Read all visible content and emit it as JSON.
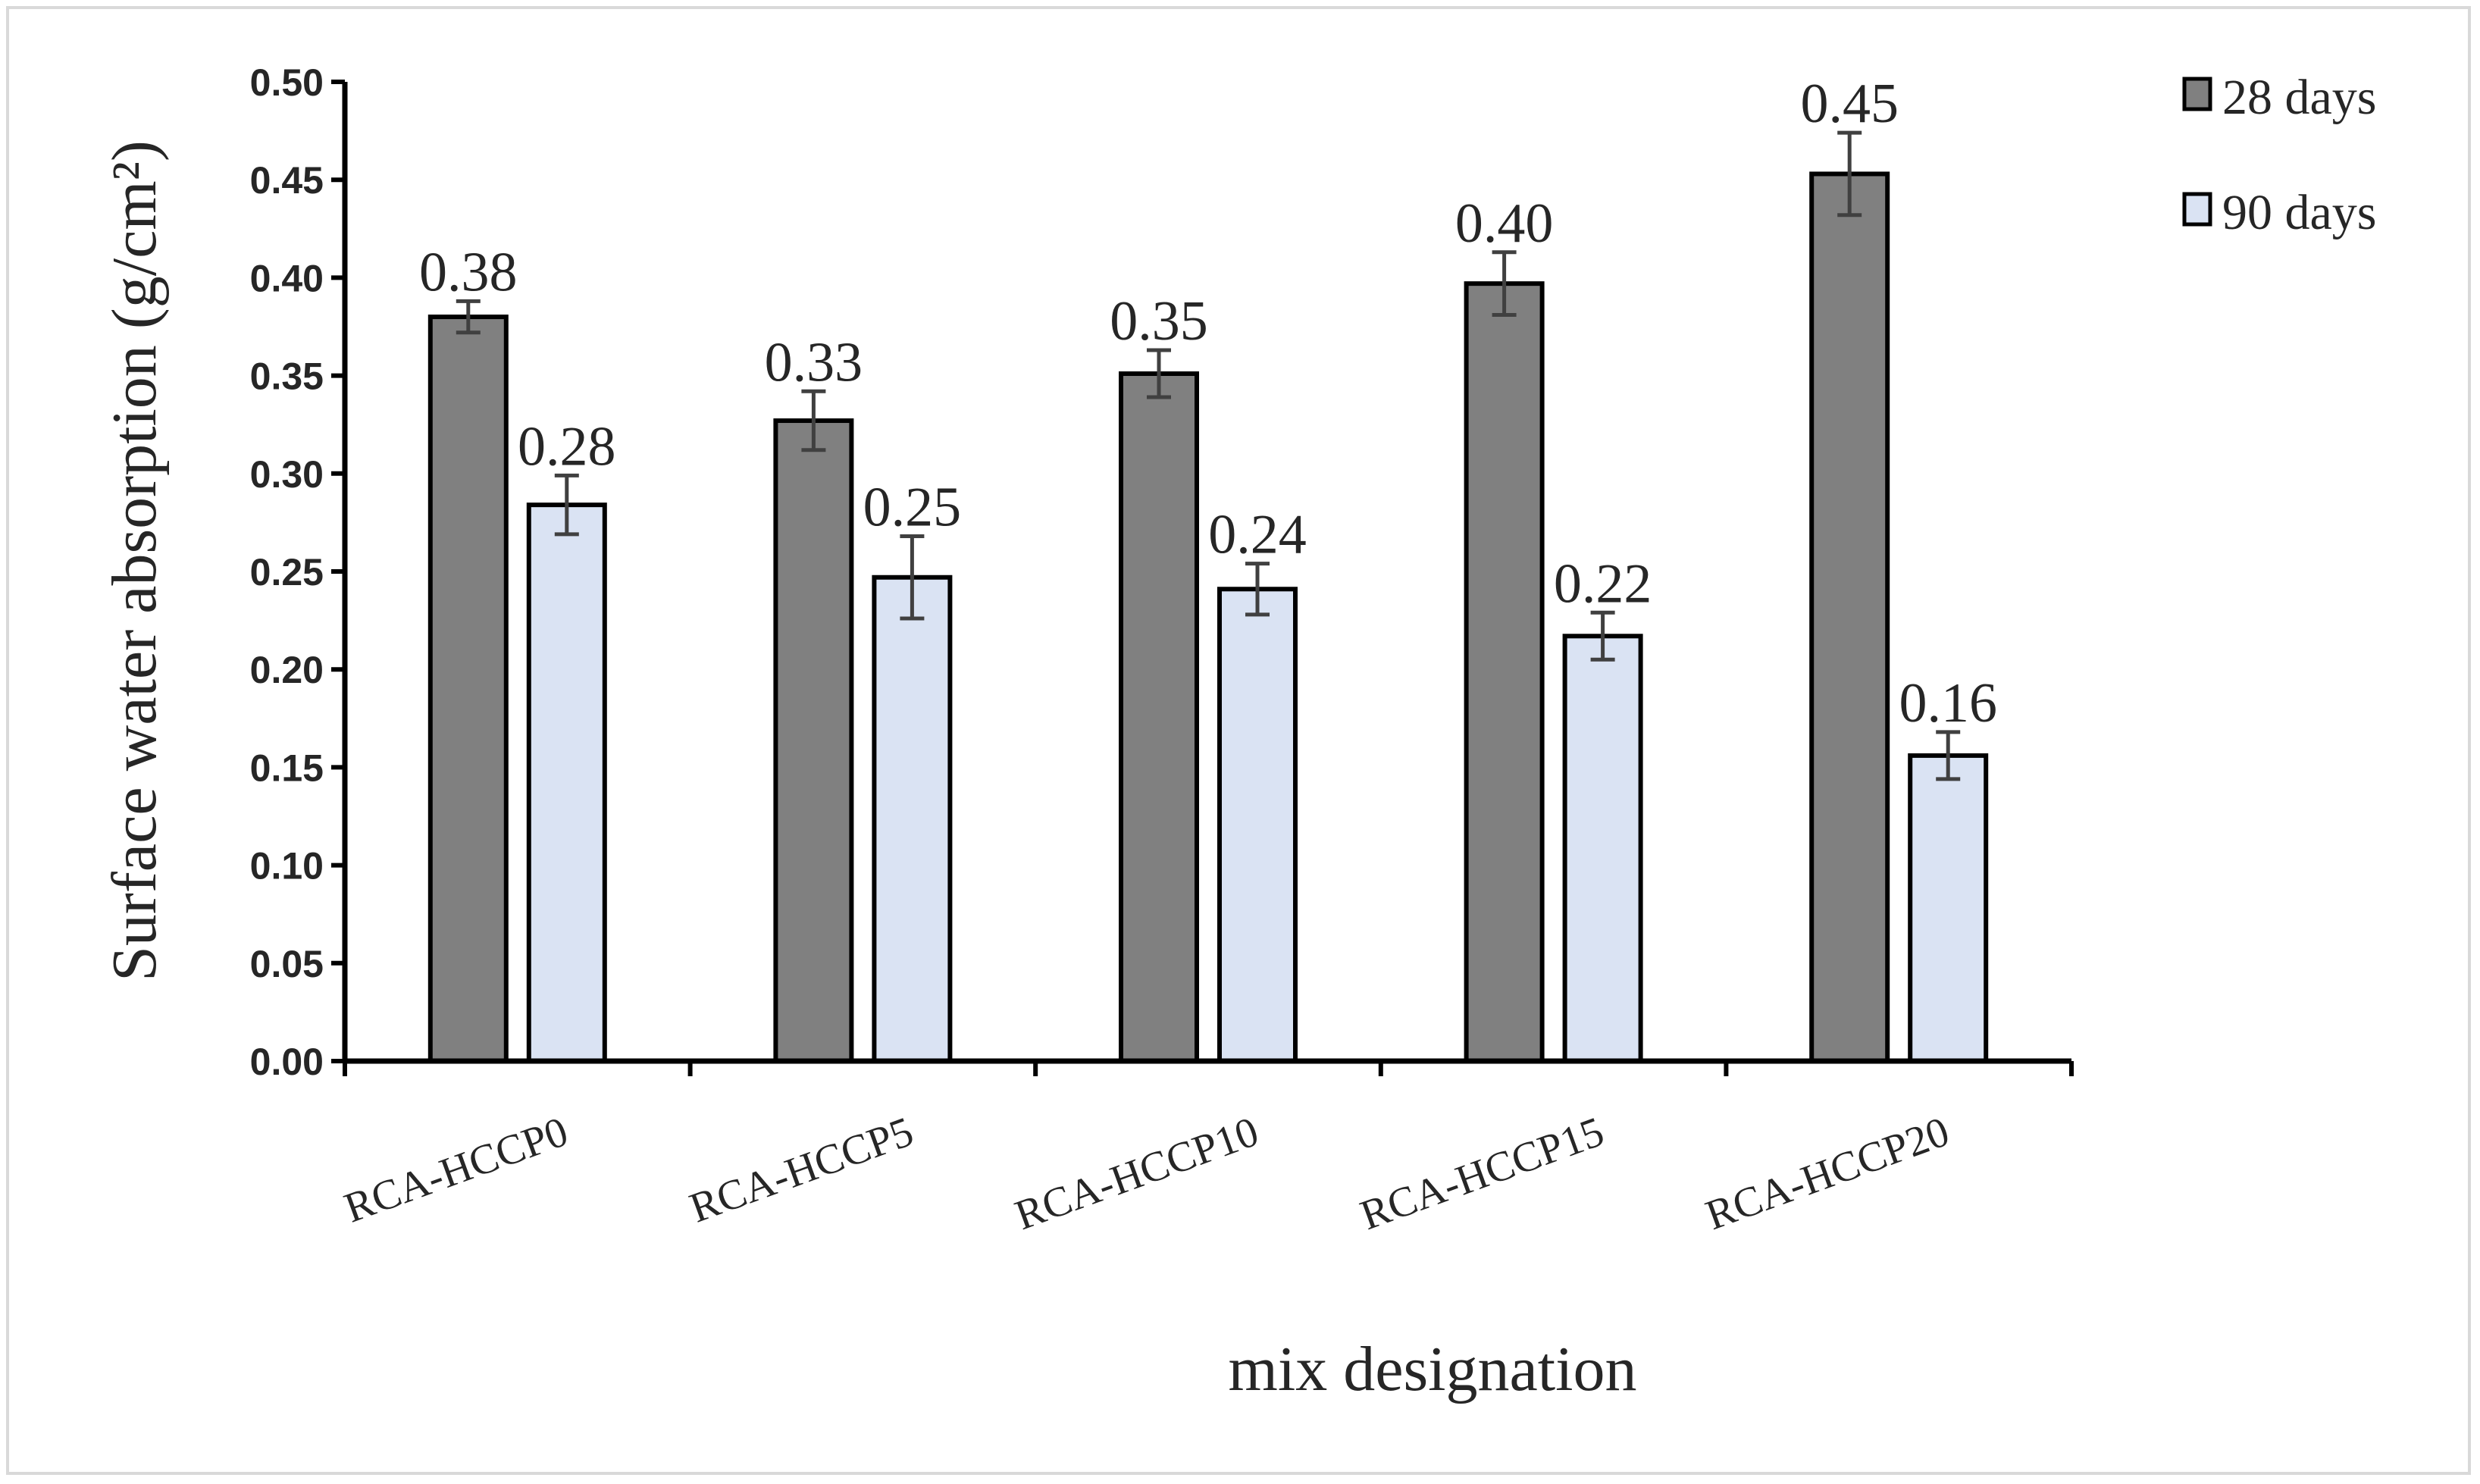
{
  "chart_data": {
    "type": "bar",
    "title": "",
    "xlabel": "mix designation",
    "ylabel": "Surface water absorption (g/cm²)",
    "ylim": [
      0,
      0.5
    ],
    "ytick_labels": [
      "0.00",
      "0.05",
      "0.10",
      "0.15",
      "0.20",
      "0.25",
      "0.30",
      "0.35",
      "0.40",
      "0.45",
      "0.50"
    ],
    "categories": [
      "RCA-HCCP0",
      "RCA-HCCP5",
      "RCA-HCCP10",
      "RCA-HCCP15",
      "RCA-HCCP20"
    ],
    "series": [
      {
        "name": "28 days",
        "values": [
          0.38,
          0.327,
          0.351,
          0.397,
          0.453
        ],
        "errors": [
          0.008,
          0.015,
          0.012,
          0.016,
          0.021
        ],
        "labels": [
          "0.38",
          "0.33",
          "0.35",
          "0.40",
          "0.45"
        ],
        "color": "#808080"
      },
      {
        "name": "90 days",
        "values": [
          0.284,
          0.247,
          0.241,
          0.217,
          0.156
        ],
        "errors": [
          0.015,
          0.021,
          0.013,
          0.012,
          0.012
        ],
        "labels": [
          "0.28",
          "0.25",
          "0.24",
          "0.22",
          "0.16"
        ],
        "color": "#dae3f3"
      }
    ],
    "legend": "top-right",
    "grid": false
  }
}
